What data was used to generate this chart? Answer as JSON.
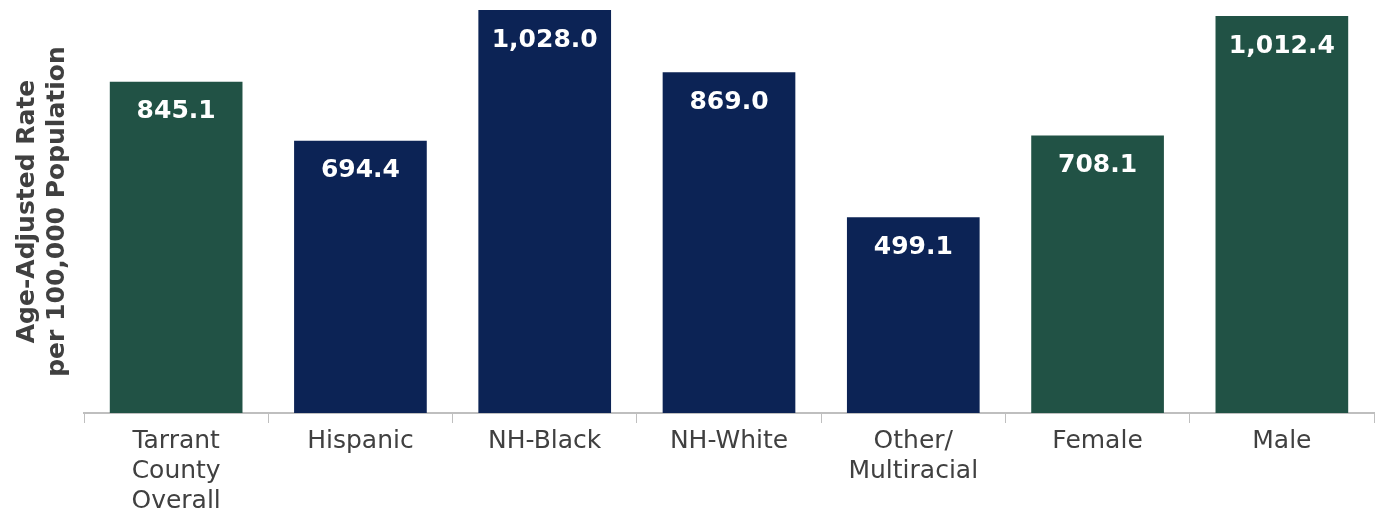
{
  "chart_data": {
    "type": "bar",
    "ylabel": "Age-Adjusted Rate\nper 100,000 Population",
    "categories": [
      "Tarrant County Overall",
      "Hispanic",
      "NH-Black",
      "NH-White",
      "Other/Multiracial",
      "Female",
      "Male"
    ],
    "values": [
      845.1,
      694.4,
      1028.0,
      869.0,
      499.1,
      708.1,
      1012.4
    ],
    "colors": [
      "#215245",
      "#0c2355",
      "#0c2355",
      "#0c2355",
      "#0c2355",
      "#215245",
      "#215245"
    ],
    "value_labels": [
      "845.1",
      "694.4",
      "1,028.0",
      "869.0",
      "499.1",
      "708.1",
      "1,012.4"
    ],
    "grid": false,
    "legend": false
  }
}
